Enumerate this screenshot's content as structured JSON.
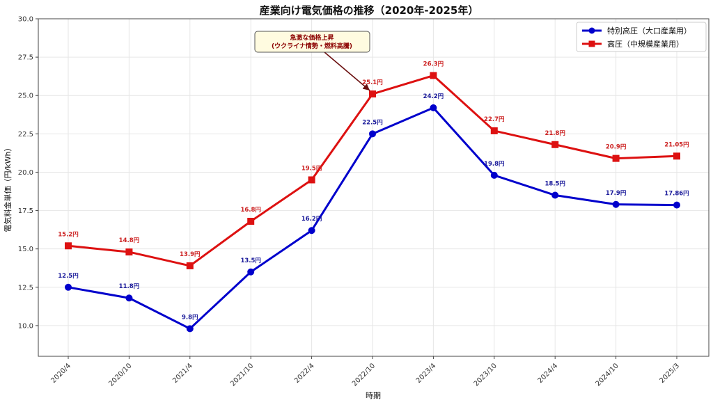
{
  "chart_data": {
    "type": "line",
    "title": "産業向け電気価格の推移（2020年-2025年）",
    "xlabel": "時期",
    "ylabel": "電気料金単価（円/kWh）",
    "ylim": [
      8.0,
      30.0
    ],
    "yticks": [
      "10.0",
      "12.5",
      "15.0",
      "17.5",
      "20.0",
      "22.5",
      "25.0",
      "27.5",
      "30.0"
    ],
    "grid": true,
    "legend_position": "upper right",
    "categories": [
      "2020/4",
      "2020/10",
      "2021/4",
      "2021/10",
      "2022/4",
      "2022/10",
      "2023/4",
      "2023/10",
      "2024/4",
      "2024/10",
      "2025/3"
    ],
    "series": [
      {
        "name": "特別高圧（大口産業用）",
        "color": "#0000cc",
        "marker": "circle",
        "values": [
          12.5,
          11.8,
          9.8,
          13.5,
          16.2,
          22.5,
          24.2,
          19.8,
          18.5,
          17.9,
          17.86
        ],
        "labels": [
          "12.5円",
          "11.8円",
          "9.8円",
          "13.5円",
          "16.2円",
          "22.5円",
          "24.2円",
          "19.8円",
          "18.5円",
          "17.9円",
          "17.86円"
        ]
      },
      {
        "name": "高圧（中規模産業用）",
        "color": "#dd1111",
        "marker": "square",
        "values": [
          15.2,
          14.8,
          13.9,
          16.8,
          19.5,
          25.1,
          26.3,
          22.7,
          21.8,
          20.9,
          21.05
        ],
        "labels": [
          "15.2円",
          "14.8円",
          "13.9円",
          "16.8円",
          "19.5円",
          "25.1円",
          "26.3円",
          "22.7円",
          "21.8円",
          "20.9円",
          "21.05円"
        ]
      }
    ],
    "annotations": [
      {
        "text_lines": [
          "急激な価格上昇",
          "(ウクライナ情勢・燃料高騰)"
        ],
        "target_category": "2022/10",
        "target_value": 25.1
      }
    ]
  }
}
